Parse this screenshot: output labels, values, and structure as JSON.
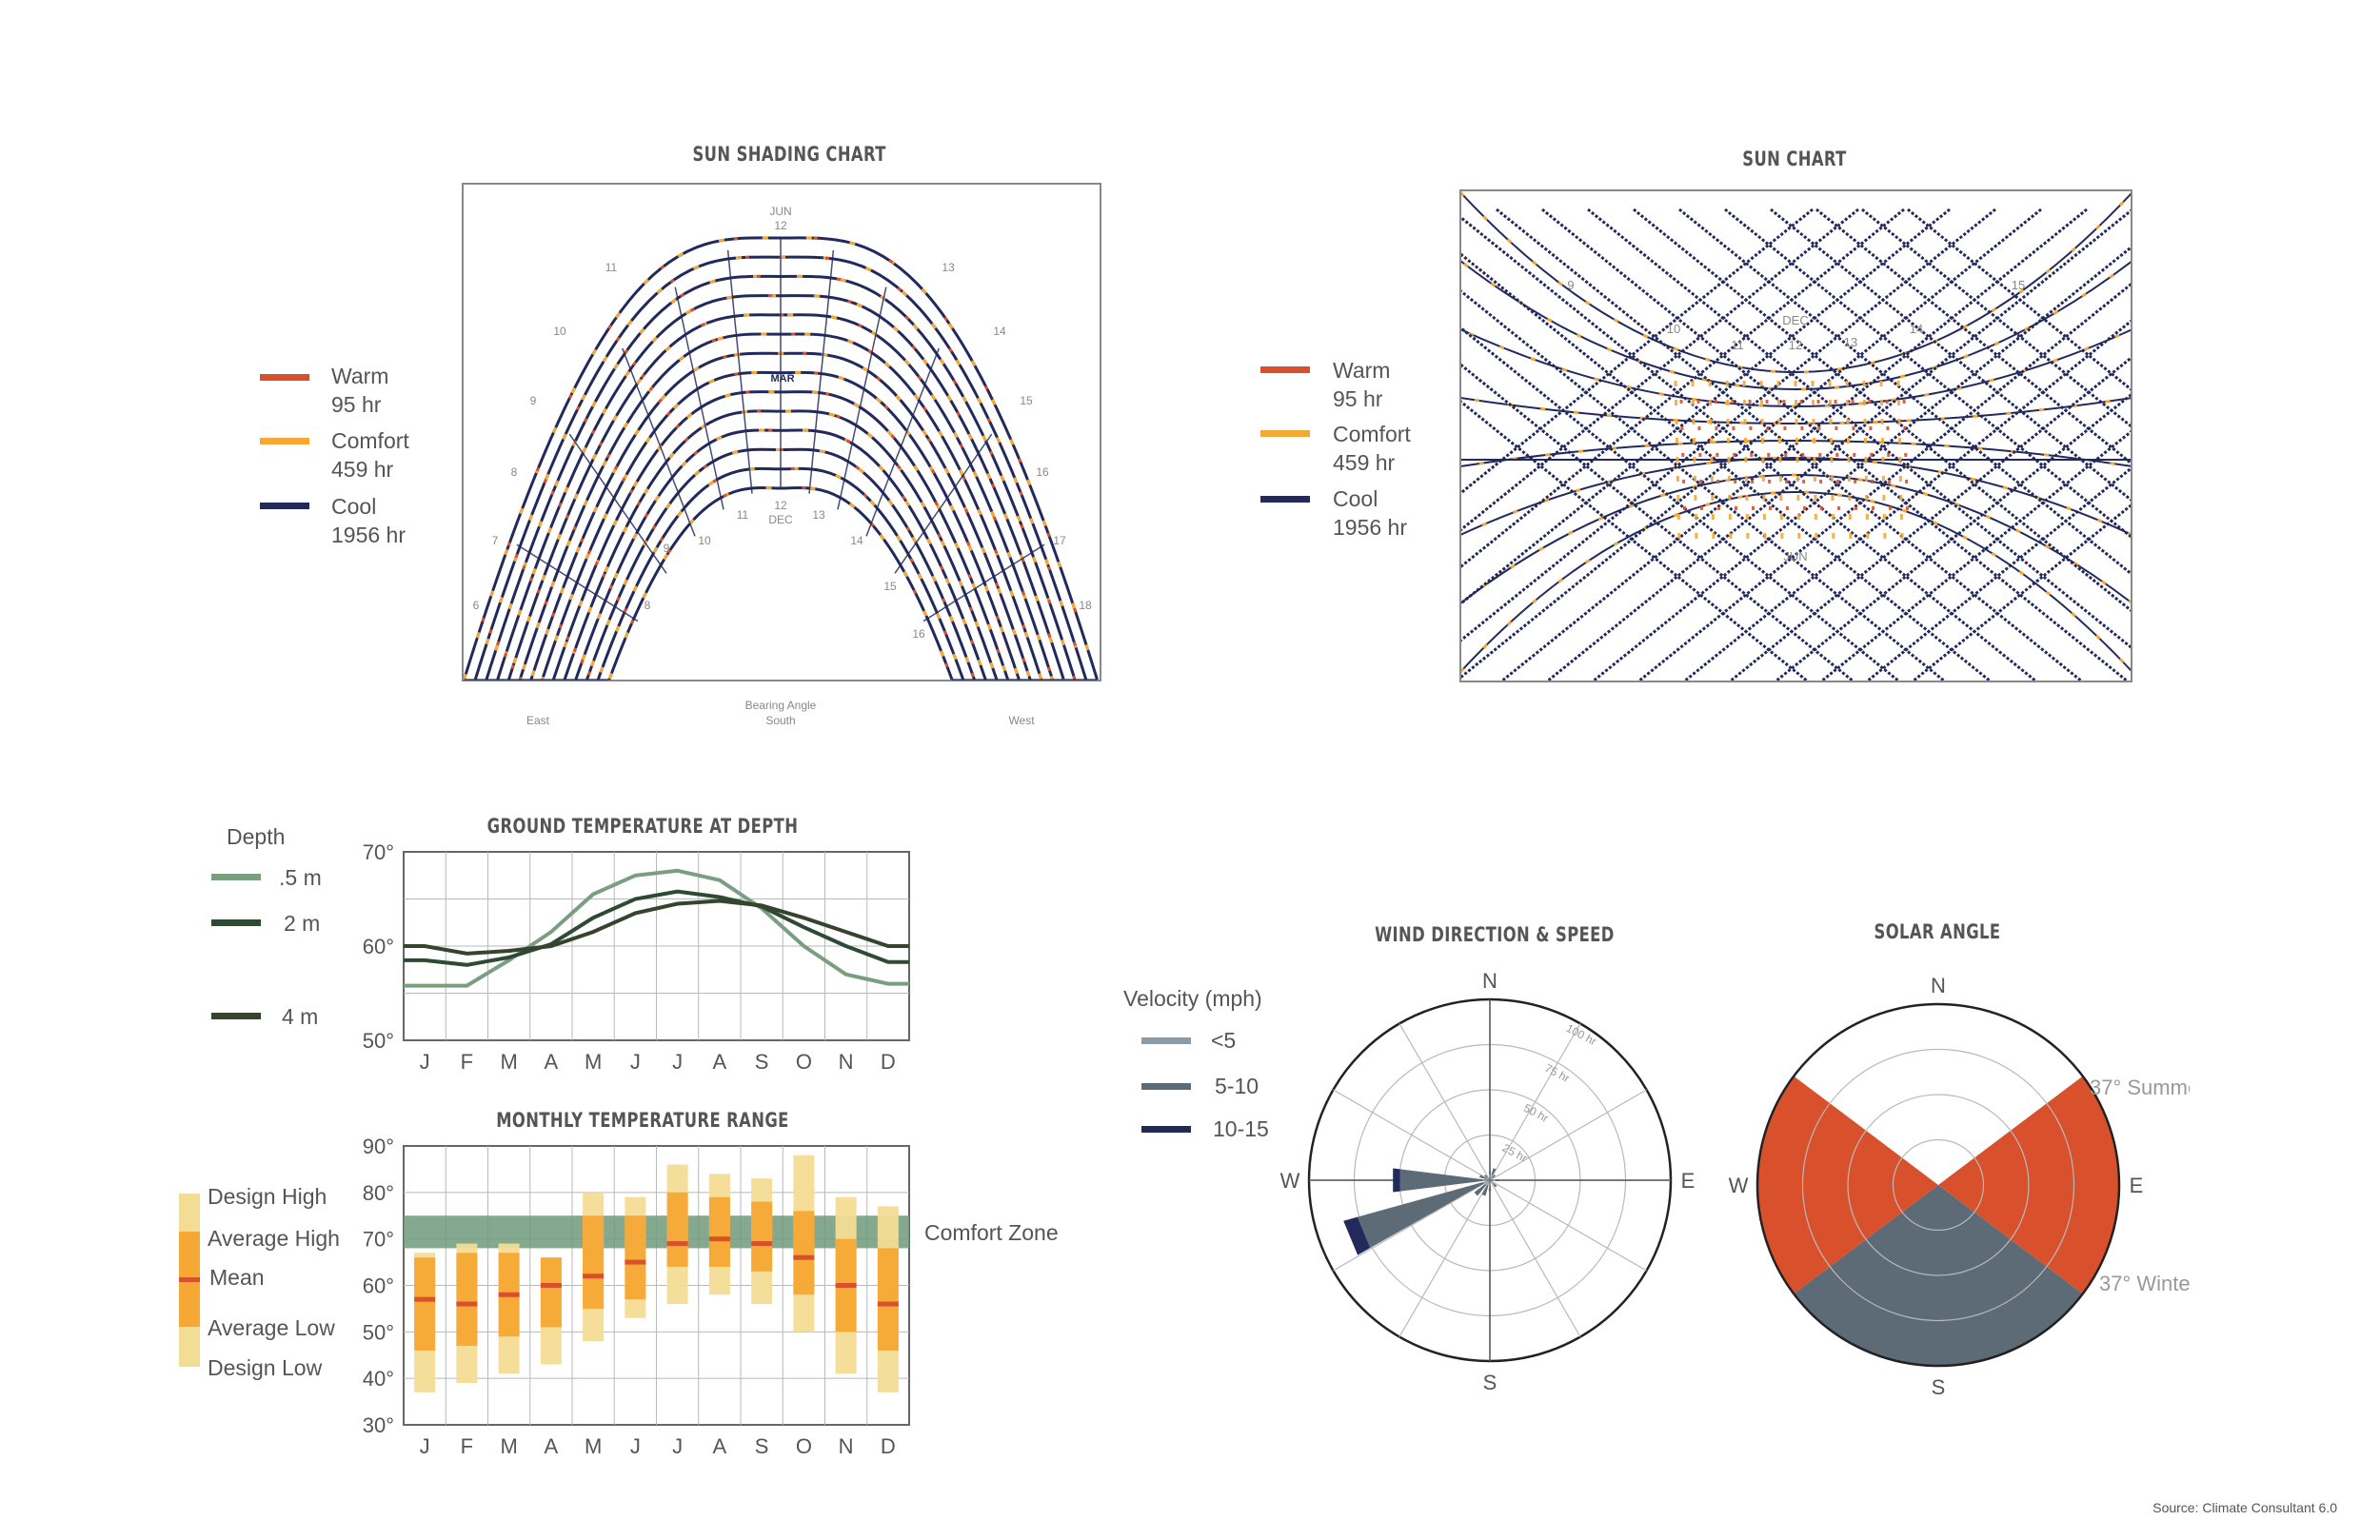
{
  "colors": {
    "warm": "#d9512c",
    "comfort": "#f6a834",
    "cool": "#222a5c",
    "grid": "#b9b9b9",
    "slate": "#5d6b76",
    "green": "#7a9e7f",
    "darkgreen": "#2e4a35",
    "darkest": "#36432d"
  },
  "source": "Source: Climate Consultant 6.0",
  "sun_legend": {
    "warm": {
      "label": "Warm",
      "hours": "95 hr"
    },
    "comfort": {
      "label": "Comfort",
      "hours": "459 hr"
    },
    "cool": {
      "label": "Cool",
      "hours": "1956 hr"
    }
  },
  "chart_data": [
    {
      "type": "diagram",
      "title": "SUN SHADING CHART",
      "labels": {
        "jun": "JUN",
        "dec": "DEC",
        "mar": "MAR",
        "noon": "12",
        "east": "East",
        "south": "South",
        "west": "West",
        "bearing": "Bearing Angle"
      },
      "hour_labels": [
        "6",
        "7",
        "8",
        "9",
        "10",
        "11",
        "12",
        "13",
        "14",
        "15",
        "16",
        "17",
        "18"
      ],
      "legend": [
        "Warm 95 hr",
        "Comfort 459 hr",
        "Cool 1956 hr"
      ]
    },
    {
      "type": "diagram",
      "title": "SUN CHART",
      "labels": {
        "dec": "DEC",
        "jun": "JUN"
      },
      "hour_labels": [
        "9",
        "10",
        "11",
        "12",
        "13",
        "14",
        "15"
      ],
      "legend": [
        "Warm 95 hr",
        "Comfort 459 hr",
        "Cool 1956 hr"
      ]
    },
    {
      "type": "line",
      "title": "GROUND TEMPERATURE AT DEPTH",
      "legend_title": "Depth",
      "categories": [
        "J",
        "F",
        "M",
        "A",
        "M",
        "J",
        "J",
        "A",
        "S",
        "O",
        "N",
        "D"
      ],
      "yticks": [
        "70°",
        "60°",
        "50°"
      ],
      "ylim": [
        50,
        70
      ],
      "series": [
        {
          "name": ".5 m",
          "values": [
            55.8,
            55.8,
            58.5,
            61.5,
            65.5,
            67.5,
            68,
            67,
            64,
            60,
            57,
            56
          ]
        },
        {
          "name": "2 m",
          "values": [
            58.5,
            58,
            58.8,
            60.2,
            63,
            65,
            65.8,
            65.2,
            64.2,
            62,
            60,
            58.3
          ]
        },
        {
          "name": "4 m",
          "values": [
            60,
            59.2,
            59.5,
            60,
            61.5,
            63.5,
            64.5,
            64.8,
            64.3,
            63,
            61.5,
            60
          ]
        }
      ]
    },
    {
      "type": "bar",
      "title": "MONTHLY TEMPERATURE RANGE",
      "categories": [
        "J",
        "F",
        "M",
        "A",
        "M",
        "J",
        "J",
        "A",
        "S",
        "O",
        "N",
        "D"
      ],
      "yticks": [
        "90°",
        "80°",
        "70°",
        "60°",
        "50°",
        "40°",
        "30°"
      ],
      "ylim": [
        30,
        90
      ],
      "legend": [
        "Design High",
        "Average High",
        "Mean",
        "Average Low",
        "Design Low"
      ],
      "comfort_zone": {
        "label": "Comfort Zone",
        "range": [
          68,
          75
        ]
      },
      "series": [
        {
          "name": "Design High",
          "values": [
            67,
            69,
            69,
            66,
            80,
            79,
            86,
            84,
            83,
            88,
            79,
            77
          ]
        },
        {
          "name": "Average High",
          "values": [
            66,
            67,
            67,
            66,
            75,
            75,
            80,
            79,
            78,
            76,
            70,
            68
          ]
        },
        {
          "name": "Mean",
          "values": [
            57,
            56,
            58,
            60,
            62,
            65,
            69,
            70,
            69,
            66,
            60,
            56
          ]
        },
        {
          "name": "Average Low",
          "values": [
            46,
            47,
            49,
            51,
            55,
            57,
            64,
            64,
            63,
            58,
            50,
            46
          ]
        },
        {
          "name": "Design Low",
          "values": [
            37,
            39,
            41,
            43,
            48,
            53,
            56,
            58,
            56,
            50,
            41,
            37
          ]
        }
      ]
    },
    {
      "type": "polar",
      "title": "WIND DIRECTION & SPEED",
      "legend_title": "Velocity (mph)",
      "legend": [
        "<5",
        "5-10",
        "10-15"
      ],
      "compass": [
        "N",
        "E",
        "S",
        "W"
      ],
      "ring_labels": [
        "25 hr",
        "50 hr",
        "75 hr",
        "100 hr"
      ],
      "rmax": 100,
      "petals": [
        {
          "dir": 247.5,
          "lt5": 4,
          "s5_10": 72,
          "s10_15": 8
        },
        {
          "dir": 270,
          "lt5": 4,
          "s5_10": 46,
          "s10_15": 4
        },
        {
          "dir": 225,
          "lt5": 3,
          "s5_10": 8,
          "s10_15": 0
        },
        {
          "dir": 202.5,
          "lt5": 3,
          "s5_10": 6,
          "s10_15": 0
        },
        {
          "dir": 292.5,
          "lt5": 2,
          "s5_10": 4,
          "s10_15": 0
        },
        {
          "dir": 22.5,
          "lt5": 3,
          "s5_10": 4,
          "s10_15": 0
        },
        {
          "dir": 90,
          "lt5": 3,
          "s5_10": 2,
          "s10_15": 0
        },
        {
          "dir": 135,
          "lt5": 3,
          "s5_10": 2,
          "s10_15": 0
        },
        {
          "dir": 180,
          "lt5": 3,
          "s5_10": 3,
          "s10_15": 0
        },
        {
          "dir": 0,
          "lt5": 3,
          "s5_10": 2,
          "s10_15": 0
        },
        {
          "dir": 45,
          "lt5": 2,
          "s5_10": 2,
          "s10_15": 0
        },
        {
          "dir": 315,
          "lt5": 2,
          "s5_10": 2,
          "s10_15": 0
        }
      ]
    },
    {
      "type": "polar",
      "title": "SOLAR ANGLE",
      "compass": [
        "N",
        "E",
        "S",
        "W"
      ],
      "summer": {
        "label": "Summer",
        "angle": "37°"
      },
      "winter": {
        "label": "Winter",
        "angle": "37°"
      }
    }
  ]
}
